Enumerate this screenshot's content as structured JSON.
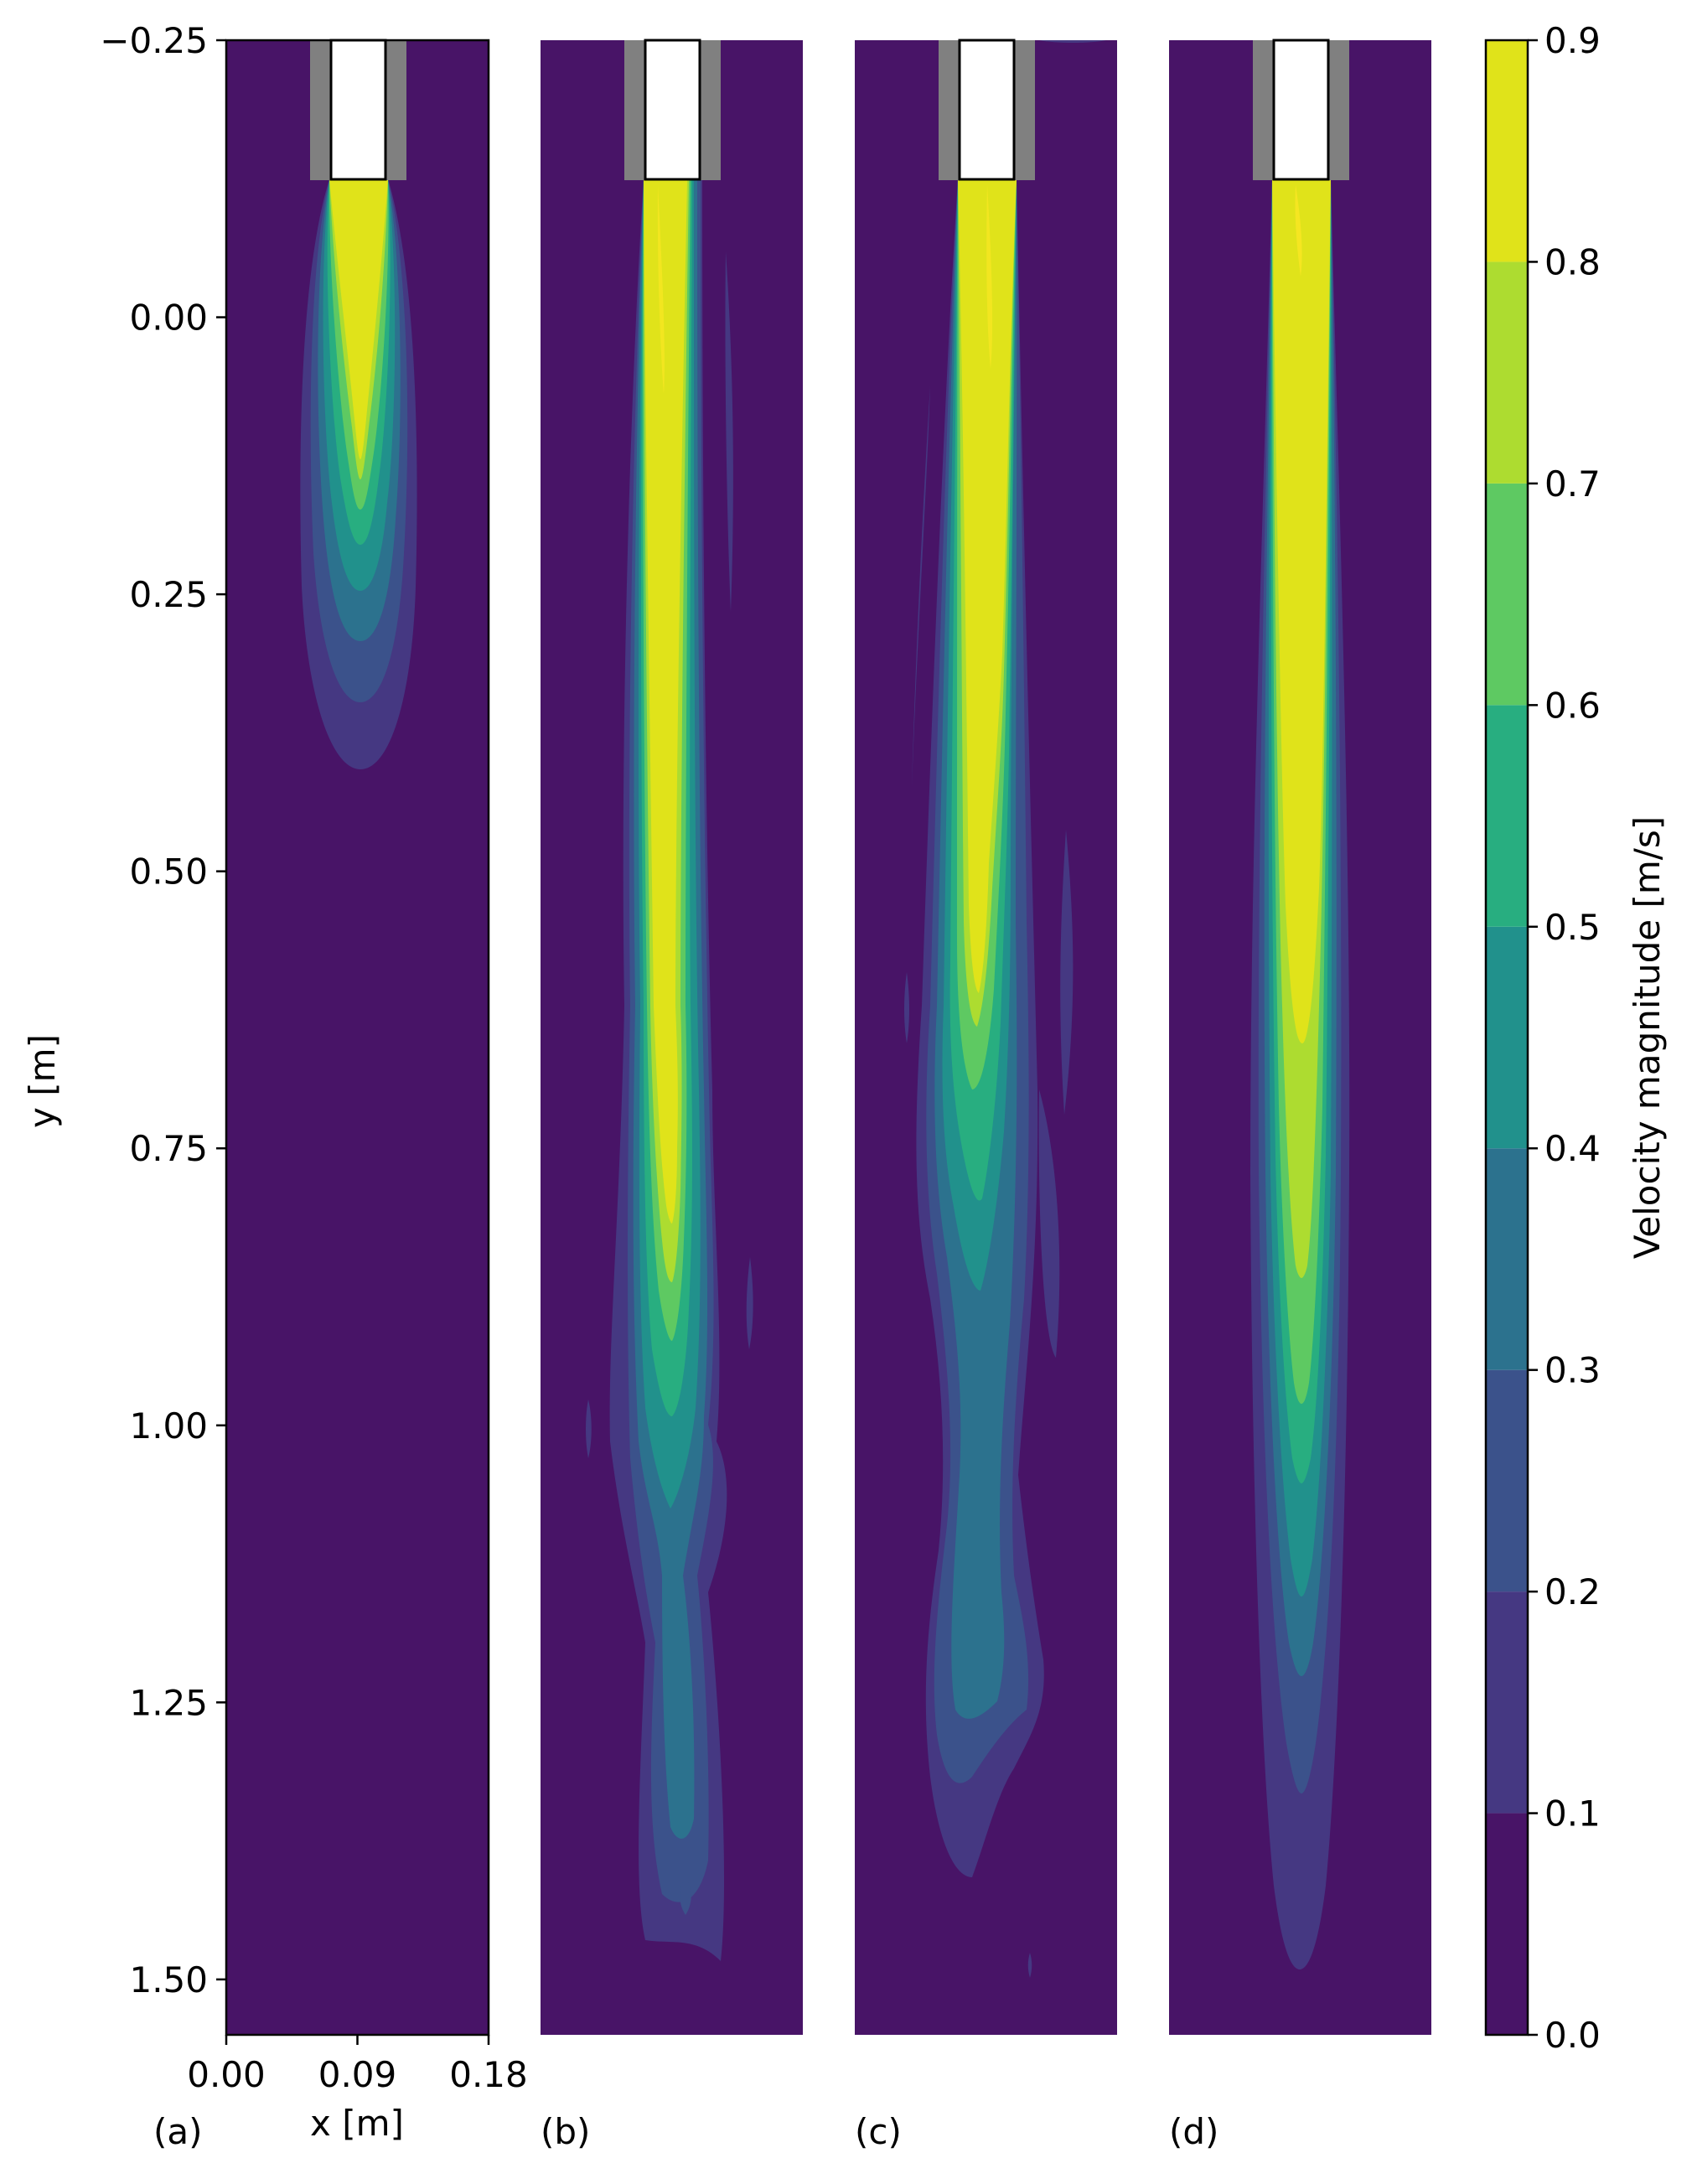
{
  "chart_data": {
    "type": "heatmap",
    "description_type": "filled contour plots of velocity magnitude",
    "panels": [
      {
        "label": "(a)",
        "has_axes_ticks": true,
        "nozzle_exit_y": -0.12,
        "jet_centerline_x": 0.09,
        "contours": [
          {
            "level": 0.1,
            "x_half_width": [
              [
                -0.12,
                0.015
              ],
              [
                0.0,
                0.03
              ],
              [
                0.2,
                0.04
              ],
              [
                0.35,
                0.035
              ],
              [
                0.41,
                0.0
              ]
            ]
          },
          {
            "level": 0.2,
            "x_half_width": [
              [
                -0.12,
                0.015
              ],
              [
                0.0,
                0.027
              ],
              [
                0.2,
                0.035
              ],
              [
                0.3,
                0.025
              ],
              [
                0.345,
                0.0
              ]
            ]
          },
          {
            "level": 0.3,
            "x_half_width": [
              [
                -0.12,
                0.015
              ],
              [
                0.1,
                0.028
              ],
              [
                0.25,
                0.02
              ],
              [
                0.285,
                0.0
              ]
            ]
          },
          {
            "level": 0.5,
            "x_half_width": [
              [
                -0.12,
                0.015
              ],
              [
                0.1,
                0.022
              ],
              [
                0.23,
                0.01
              ],
              [
                0.25,
                0.0
              ]
            ]
          },
          {
            "level": 0.8,
            "x_half_width": [
              [
                -0.12,
                0.015
              ],
              [
                0.05,
                0.012
              ],
              [
                0.15,
                0.004
              ],
              [
                0.175,
                0.0
              ]
            ]
          }
        ]
      },
      {
        "label": "(b)",
        "has_axes_ticks": false,
        "potential_core_length_m": 0.85,
        "jet_extent_m": 1.48
      },
      {
        "label": "(c)",
        "has_axes_ticks": false,
        "potential_core_length_m": 0.7,
        "jet_extent_m": 1.34
      },
      {
        "label": "(d)",
        "has_axes_ticks": false,
        "potential_core_length_m": 0.65,
        "jet_extent_m": 1.49
      }
    ],
    "xlabel": "x [m]",
    "ylabel": "y [m]",
    "xlim": [
      0.0,
      0.18
    ],
    "ylim": [
      1.55,
      -0.25
    ],
    "xticks": [
      "0.00",
      "0.09",
      "0.18"
    ],
    "yticks": [
      "−0.25",
      "0.00",
      "0.25",
      "0.50",
      "0.75",
      "1.00",
      "1.25",
      "1.50"
    ],
    "yticks_values": [
      -0.25,
      0.0,
      0.25,
      0.5,
      0.75,
      1.0,
      1.25,
      1.5
    ],
    "colorbar": {
      "label": "Velocity magnitude [m/s]",
      "levels": [
        0.0,
        0.1,
        0.2,
        0.3,
        0.4,
        0.5,
        0.6,
        0.7,
        0.8,
        0.9
      ],
      "tick_labels": [
        "0.0",
        "0.1",
        "0.2",
        "0.3",
        "0.4",
        "0.5",
        "0.6",
        "0.7",
        "0.8",
        "0.9"
      ],
      "colors": [
        "#481467",
        "#453882",
        "#3b528b",
        "#2c728e",
        "#21918c",
        "#28ae80",
        "#5ec962",
        "#addc30",
        "#e0e31a"
      ]
    },
    "nozzle": {
      "wall_color": "#808080",
      "interior_color": "#ffffff",
      "top_y": -0.25,
      "exit_y": -0.125
    },
    "grid": false
  },
  "colors": {
    "background": "#481467",
    "core": "#e0e31a"
  }
}
